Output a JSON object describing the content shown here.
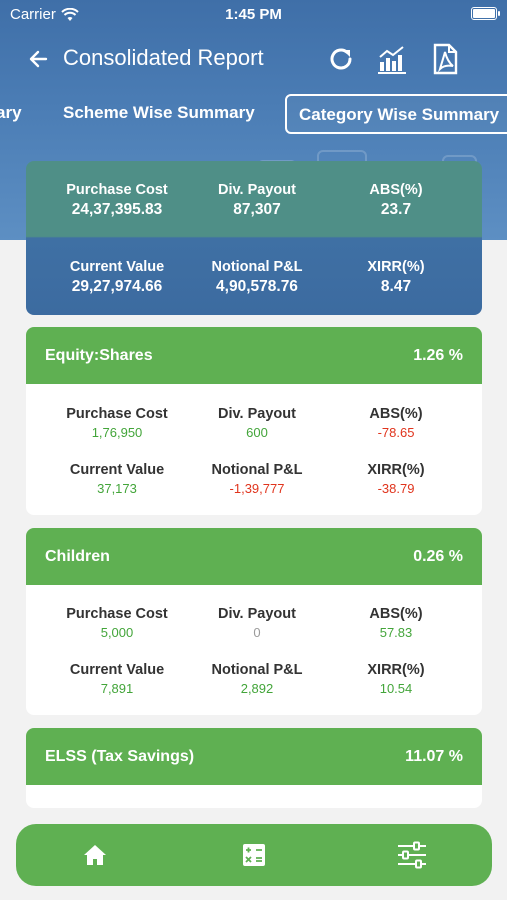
{
  "status": {
    "carrier": "Carrier",
    "time": "1:45 PM"
  },
  "appbar": {
    "title": "Consolidated Report"
  },
  "tabs": [
    "ary",
    "Scheme Wise Summary",
    "Category Wise Summary"
  ],
  "summary": {
    "purchase_cost_label": "Purchase Cost",
    "purchase_cost": "24,37,395.83",
    "div_payout_label": "Div. Payout",
    "div_payout": "87,307",
    "abs_label": "ABS(%)",
    "abs": "23.7",
    "current_value_label": "Current Value",
    "current_value": "29,27,974.66",
    "notional_label": "Notional P&L",
    "notional": "4,90,578.76",
    "xirr_label": "XIRR(%)",
    "xirr": "8.47"
  },
  "labels": {
    "purchase_cost": "Purchase Cost",
    "div_payout": "Div. Payout",
    "abs": "ABS(%)",
    "current_value": "Current Value",
    "notional": "Notional P&L",
    "xirr": "XIRR(%)"
  },
  "categories": [
    {
      "name": "Equity:Shares",
      "percent": "1.26 %",
      "purchase_cost": "1,76,950",
      "div_payout": "600",
      "abs": "-78.65",
      "current_value": "37,173",
      "notional": "-1,39,777",
      "xirr": "-38.79"
    },
    {
      "name": "Children",
      "percent": "0.26 %",
      "purchase_cost": "5,000",
      "div_payout": "0",
      "abs": "57.83",
      "current_value": "7,891",
      "notional": "2,892",
      "xirr": "10.54"
    },
    {
      "name": "ELSS (Tax Savings)",
      "percent": "11.07 %"
    }
  ],
  "colors": {
    "header": "#4b7db5",
    "card_header": "#5fb052",
    "positive": "#43a53a",
    "negative": "#e0341d",
    "neutral": "#9b9b9b"
  },
  "icons": [
    "back-arrow-icon",
    "refresh-icon",
    "chart-icon",
    "pdf-icon",
    "home-icon",
    "calculator-icon",
    "filter-sliders-icon"
  ]
}
